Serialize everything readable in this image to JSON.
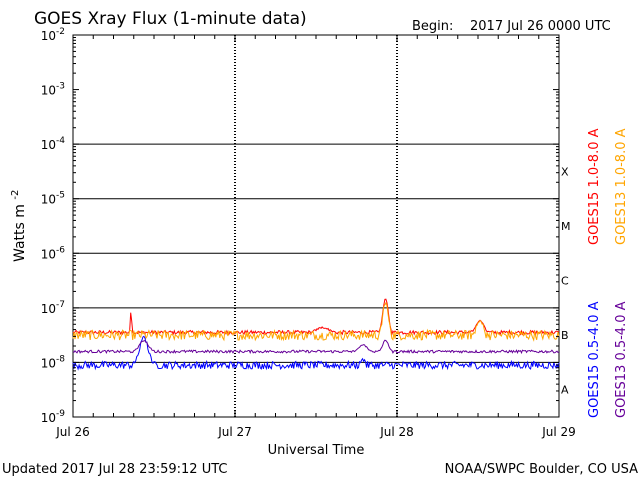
{
  "chart_data": {
    "type": "line",
    "title": "GOES Xray Flux (1-minute data)",
    "begin_label": "Begin:",
    "begin_value": "2017 Jul 26 0000 UTC",
    "xlabel": "Universal Time",
    "ylabel": "Watts m",
    "ylabel_superscript": "-2",
    "yscale": "log",
    "ylim": [
      1e-09,
      0.01
    ],
    "y_ticks": [
      {
        "exp": -2,
        "label": "10",
        "sup": "-2"
      },
      {
        "exp": -3,
        "label": "10",
        "sup": "-3"
      },
      {
        "exp": -4,
        "label": "10",
        "sup": "-4"
      },
      {
        "exp": -5,
        "label": "10",
        "sup": "-5"
      },
      {
        "exp": -6,
        "label": "10",
        "sup": "-6"
      },
      {
        "exp": -7,
        "label": "10",
        "sup": "-7"
      },
      {
        "exp": -8,
        "label": "10",
        "sup": "-8"
      },
      {
        "exp": -9,
        "label": "10",
        "sup": "-9"
      }
    ],
    "xlim": [
      0,
      72
    ],
    "x_unit": "hours since 2017 Jul 26 0000 UTC",
    "x_ticks": [
      {
        "hour": 0,
        "label": "Jul 26"
      },
      {
        "hour": 24,
        "label": "Jul 27"
      },
      {
        "hour": 48,
        "label": "Jul 28"
      },
      {
        "hour": 72,
        "label": "Jul 29"
      }
    ],
    "flare_classes": [
      {
        "label": "X",
        "exp": -4
      },
      {
        "label": "M",
        "exp": -5
      },
      {
        "label": "C",
        "exp": -6
      },
      {
        "label": "B",
        "exp": -7
      },
      {
        "label": "A",
        "exp": -8
      }
    ],
    "series": [
      {
        "name": "GOES15 1.0-8.0 A",
        "color": "#ff0000",
        "baseline_exp": -7.45,
        "noise": 0.035,
        "events": [
          {
            "hour": 8.6,
            "exp": -7.0,
            "width": 0.12
          },
          {
            "hour": 46.3,
            "exp": -6.82,
            "width": 0.55
          },
          {
            "hour": 60.3,
            "exp": -7.22,
            "width": 0.7
          },
          {
            "hour": 37.0,
            "exp": -7.36,
            "width": 1.2
          }
        ]
      },
      {
        "name": "GOES13 1.0-8.0 A",
        "color": "#ffa500",
        "baseline_exp": -7.5,
        "noise": 0.09,
        "events": [
          {
            "hour": 46.3,
            "exp": -6.9,
            "width": 0.55
          },
          {
            "hour": 60.3,
            "exp": -7.25,
            "width": 0.7
          }
        ]
      },
      {
        "name": "GOES15 0.5-4.0 A",
        "color": "#0000ff",
        "baseline_exp": -8.05,
        "noise": 0.07,
        "events": [
          {
            "hour": 10.5,
            "exp": -7.55,
            "width": 0.9
          },
          {
            "hour": 5.0,
            "exp": -8.05,
            "width": 2.5
          },
          {
            "hour": 43.0,
            "exp": -7.95,
            "width": 0.5
          }
        ]
      },
      {
        "name": "GOES13 0.5-4.0 A",
        "color": "#660099",
        "baseline_exp": -7.8,
        "noise": 0.025,
        "events": [
          {
            "hour": 10.5,
            "exp": -7.6,
            "width": 0.9
          },
          {
            "hour": 43.0,
            "exp": -7.68,
            "width": 0.8
          },
          {
            "hour": 46.3,
            "exp": -7.6,
            "width": 0.6
          }
        ]
      }
    ]
  },
  "footer": {
    "updated": "Updated 2017 Jul 28 23:59:12 UTC",
    "source": "NOAA/SWPC Boulder, CO USA"
  }
}
